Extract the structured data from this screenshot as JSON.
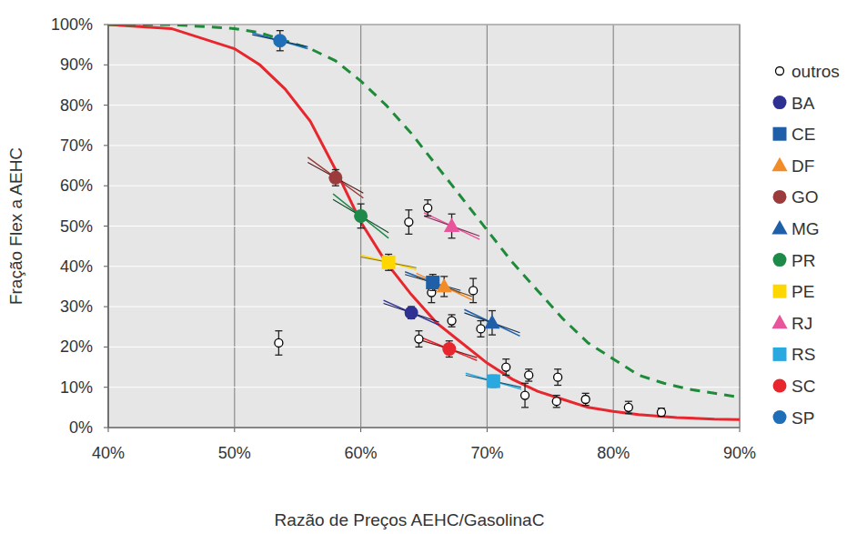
{
  "chart_data": {
    "type": "scatter",
    "x_label": "Razão de Preços AEHC/GasolinaC",
    "y_label": "Fração Flex a AEHC",
    "xlim": [
      40,
      90
    ],
    "ylim": [
      0,
      100
    ],
    "xticks": [
      {
        "value": 40,
        "label": "40%"
      },
      {
        "value": 50,
        "label": "50%"
      },
      {
        "value": 60,
        "label": "60%"
      },
      {
        "value": 70,
        "label": "70%"
      },
      {
        "value": 80,
        "label": "80%"
      },
      {
        "value": 90,
        "label": "90%"
      }
    ],
    "yticks": [
      {
        "value": 0,
        "label": "0%"
      },
      {
        "value": 10,
        "label": "10%"
      },
      {
        "value": 20,
        "label": "20%"
      },
      {
        "value": 30,
        "label": "30%"
      },
      {
        "value": 40,
        "label": "40%"
      },
      {
        "value": 50,
        "label": "50%"
      },
      {
        "value": 60,
        "label": "60%"
      },
      {
        "value": 70,
        "label": "70%"
      },
      {
        "value": 80,
        "label": "80%"
      },
      {
        "value": 90,
        "label": "90%"
      },
      {
        "value": 100,
        "label": "100%"
      }
    ],
    "grid": true,
    "legend": "right",
    "series": [
      {
        "type": "line",
        "color": "#e8262d",
        "line_style": "solid",
        "x": [
          40,
          45,
          50,
          52,
          54,
          56,
          58,
          60,
          62,
          64,
          66,
          68,
          70,
          72,
          74,
          76,
          78,
          80,
          82,
          85,
          88,
          90
        ],
        "values": [
          100,
          99,
          94,
          90,
          84,
          76,
          64,
          51,
          41,
          33,
          26,
          21,
          16,
          12,
          9,
          7,
          5,
          4,
          3.2,
          2.5,
          2.1,
          2
        ]
      },
      {
        "type": "line",
        "color": "#1e8a3a",
        "line_style": "dashed",
        "x": [
          40,
          45,
          50,
          52,
          54,
          56,
          58,
          60,
          62,
          64,
          66,
          68,
          70,
          72,
          74,
          76,
          78,
          80,
          82,
          84,
          86,
          88,
          90
        ],
        "values": [
          100,
          100,
          99,
          98,
          96,
          94,
          91,
          86,
          80,
          73,
          65,
          57,
          49,
          41,
          34,
          27,
          21,
          17,
          13,
          11,
          9.5,
          8.5,
          7.5
        ]
      },
      {
        "name": "outros",
        "type": "scatter",
        "color": "#000000",
        "marker": "circle-open",
        "x": [
          53.5,
          63.8,
          65.3,
          65.6,
          64.6,
          67.2,
          68.9,
          69.5,
          71.5,
          73.0,
          73.3,
          75.5,
          75.6,
          77.8,
          81.2,
          83.8
        ],
        "values": [
          21,
          51,
          54.5,
          33.5,
          22,
          26.5,
          34,
          24.5,
          15,
          8,
          13,
          6.5,
          12.5,
          7,
          5,
          3.8
        ],
        "errors": [
          3,
          3,
          2,
          2.5,
          2,
          1.5,
          3,
          2,
          2,
          3,
          1.5,
          1.5,
          2,
          1.5,
          1.5,
          1
        ]
      },
      {
        "name": "BA",
        "type": "scatter",
        "color": "#2e3192",
        "marker": "circle",
        "x": [
          64.0
        ],
        "values": [
          28.5
        ],
        "errors": [
          1.5
        ],
        "slopes": [
          -1.4
        ]
      },
      {
        "name": "CE",
        "type": "scatter",
        "color": "#1f5fa8",
        "marker": "square",
        "x": [
          65.7
        ],
        "values": [
          36
        ],
        "errors": [
          2
        ],
        "slopes": [
          -1.2
        ]
      },
      {
        "name": "DF",
        "type": "scatter",
        "color": "#f28c28",
        "marker": "triangle",
        "x": [
          66.6
        ],
        "values": [
          35
        ],
        "errors": [
          2.5
        ],
        "slopes": [
          -1.5
        ]
      },
      {
        "name": "GO",
        "type": "scatter",
        "color": "#9c3b3b",
        "marker": "circle",
        "x": [
          58.0
        ],
        "values": [
          62
        ],
        "errors": [
          2
        ],
        "slopes": [
          -2.3
        ]
      },
      {
        "name": "MG",
        "type": "scatter",
        "color": "#1f5fa8",
        "marker": "triangle",
        "x": [
          70.4
        ],
        "values": [
          26
        ],
        "errors": [
          3
        ],
        "slopes": [
          -1.5
        ]
      },
      {
        "name": "PR",
        "type": "scatter",
        "color": "#1e8a4a",
        "marker": "circle",
        "x": [
          60.0
        ],
        "values": [
          52.5
        ],
        "errors": [
          3
        ],
        "slopes": [
          -2.5
        ]
      },
      {
        "name": "PE",
        "type": "scatter",
        "color": "#ffd700",
        "marker": "square",
        "x": [
          62.2
        ],
        "values": [
          41
        ],
        "errors": [
          2
        ],
        "slopes": [
          -0.8
        ]
      },
      {
        "name": "RJ",
        "type": "scatter",
        "color": "#e8559a",
        "marker": "triangle",
        "x": [
          67.2
        ],
        "values": [
          50
        ],
        "errors": [
          3
        ],
        "slopes": [
          -1.5
        ]
      },
      {
        "name": "RS",
        "type": "scatter",
        "color": "#2aa9e0",
        "marker": "square",
        "x": [
          70.5
        ],
        "values": [
          11.5
        ],
        "errors": [
          1.5
        ],
        "slopes": [
          -0.9
        ]
      },
      {
        "name": "SC",
        "type": "scatter",
        "color": "#e8262d",
        "marker": "circle",
        "x": [
          67.0
        ],
        "values": [
          19.5
        ],
        "errors": [
          2
        ],
        "slopes": [
          -1.3
        ]
      },
      {
        "name": "SP",
        "type": "scatter",
        "color": "#1f6fb8",
        "marker": "circle",
        "x": [
          53.6
        ],
        "values": [
          96
        ],
        "errors": [
          2.5
        ],
        "slopes": [
          -0.9
        ]
      }
    ]
  }
}
